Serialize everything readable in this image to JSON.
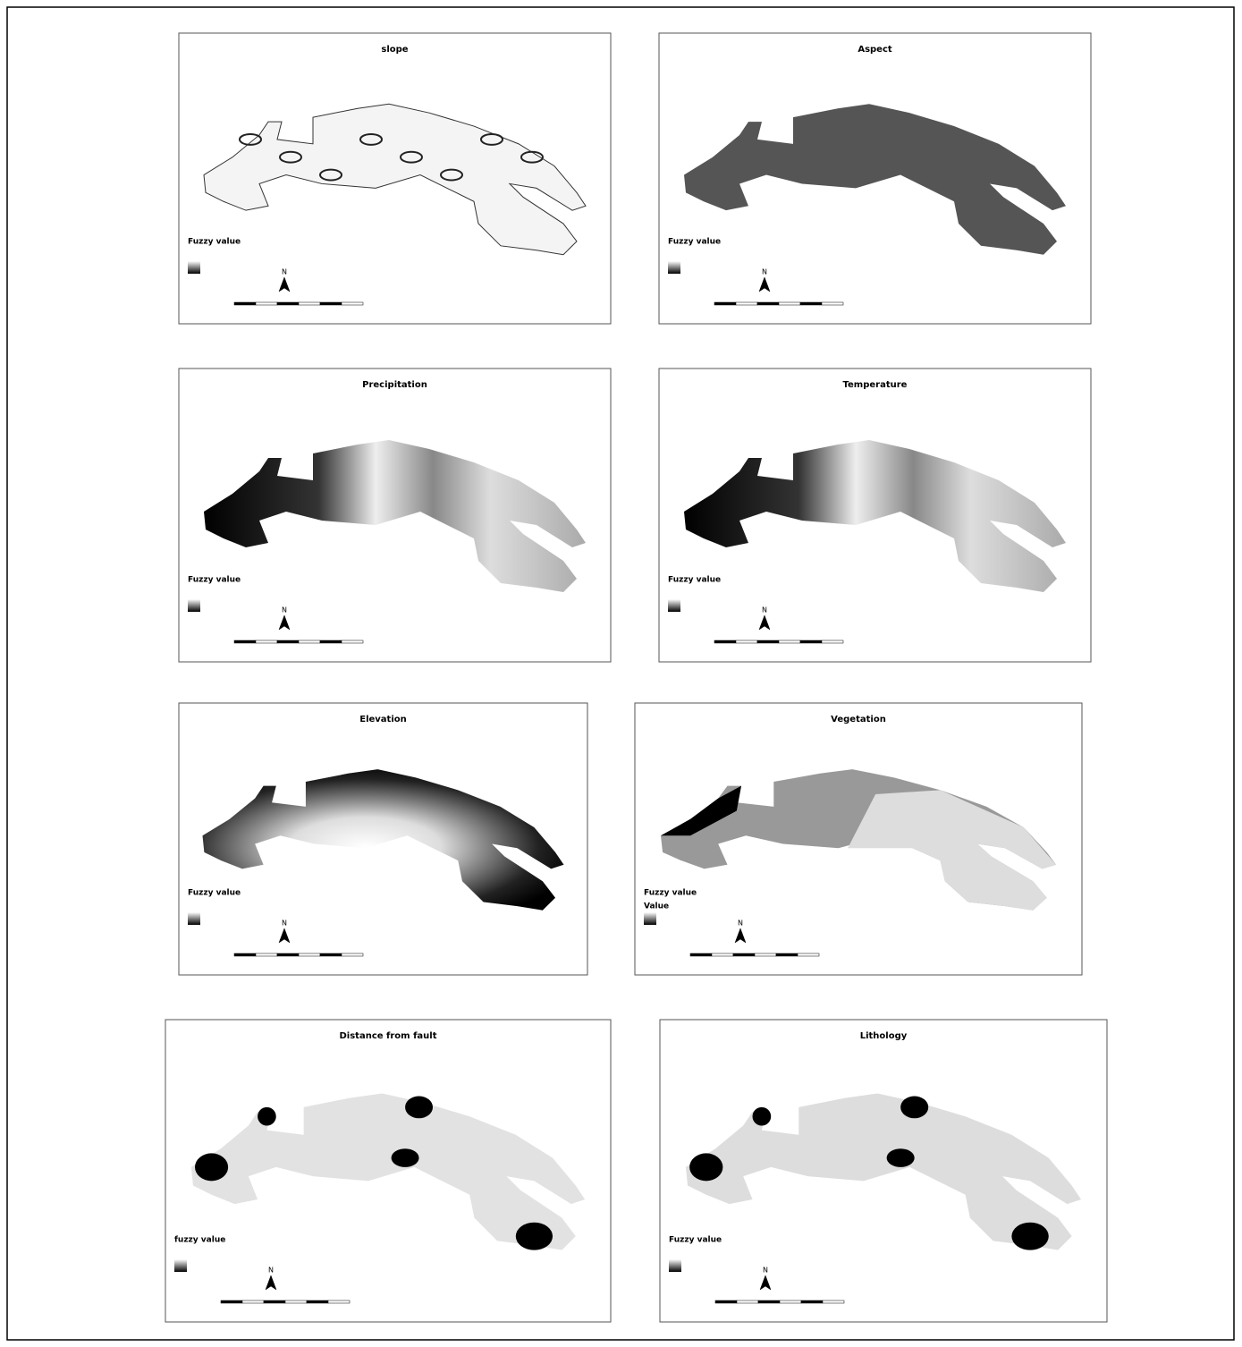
{
  "panels": [
    {
      "title": "slope",
      "legend_title": "Fuzzy value",
      "north": "N"
    },
    {
      "title": "Aspect",
      "legend_title": "Fuzzy value",
      "north": "N"
    },
    {
      "title": "Precipitation",
      "legend_title": "Fuzzy value",
      "north": "N"
    },
    {
      "title": "Temperature",
      "legend_title": "Fuzzy value",
      "north": "N"
    },
    {
      "title": "Elevation",
      "legend_title": "Fuzzy value",
      "north": "N"
    },
    {
      "title": "Vegetation",
      "legend_title": "Fuzzy value",
      "legend_subtitle": "Value",
      "north": "N"
    },
    {
      "title": "Distance from fault",
      "legend_title": "fuzzy value",
      "north": "N"
    },
    {
      "title": "Lithology",
      "legend_title": "Fuzzy value",
      "north": "N"
    }
  ]
}
